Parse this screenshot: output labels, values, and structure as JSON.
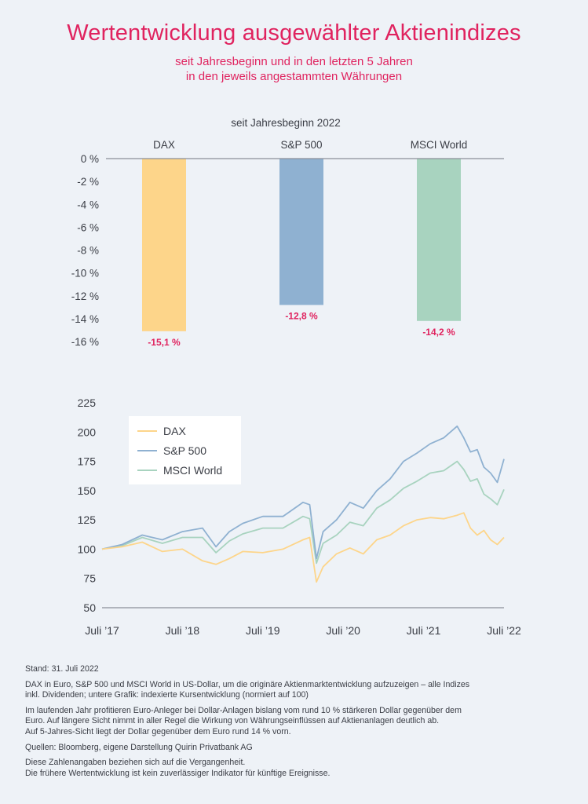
{
  "header": {
    "title": "Wertentwicklung ausgewählter Aktienindizes",
    "subtitle_line1": "seit Jahresbeginn und in den letzten 5 Jahren",
    "subtitle_line2": "in den jeweils angestammten Währungen"
  },
  "chart_data": [
    {
      "type": "bar",
      "subtitle": "seit Jahresbeginn 2022",
      "categories": [
        "DAX",
        "S&P 500",
        "MSCI World"
      ],
      "values": [
        -15.1,
        -12.8,
        -14.2
      ],
      "value_labels": [
        "-15,1 %",
        "-12,8 %",
        "-14,2 %"
      ],
      "colors": [
        "#fdd58a",
        "#8fb1d1",
        "#a8d3bf"
      ],
      "ylim": [
        -16,
        0
      ],
      "yticks": [
        0,
        -2,
        -4,
        -6,
        -8,
        -10,
        -12,
        -14,
        -16
      ],
      "ytick_labels": [
        "0 %",
        "-2 %",
        "-4 %",
        "-6 %",
        "-8 %",
        "-10 %",
        "-12 %",
        "-14 %",
        "-16 %"
      ],
      "label_color": "#e0235f"
    },
    {
      "type": "line",
      "x": [
        "2017-07",
        "2017-10",
        "2018-01",
        "2018-04",
        "2018-07",
        "2018-10",
        "2018-12",
        "2019-02",
        "2019-04",
        "2019-07",
        "2019-10",
        "2020-01",
        "2020-02",
        "2020-03",
        "2020-04",
        "2020-06",
        "2020-08",
        "2020-10",
        "2020-12",
        "2021-02",
        "2021-04",
        "2021-06",
        "2021-08",
        "2021-10",
        "2021-12",
        "2022-01",
        "2022-02",
        "2022-03",
        "2022-04",
        "2022-05",
        "2022-06",
        "2022-07"
      ],
      "series": [
        {
          "name": "DAX",
          "color": "#fdd58a",
          "values": [
            100,
            102,
            106,
            98,
            100,
            90,
            87,
            92,
            98,
            97,
            100,
            108,
            110,
            72,
            85,
            96,
            101,
            96,
            108,
            112,
            120,
            125,
            127,
            126,
            129,
            131,
            118,
            112,
            116,
            108,
            104,
            110
          ]
        },
        {
          "name": "S&P 500",
          "color": "#8fb1d1",
          "values": [
            100,
            104,
            112,
            108,
            115,
            118,
            102,
            115,
            122,
            128,
            128,
            140,
            138,
            92,
            115,
            125,
            140,
            135,
            150,
            160,
            175,
            182,
            190,
            195,
            205,
            195,
            183,
            185,
            170,
            165,
            157,
            177
          ]
        },
        {
          "name": "MSCI World",
          "color": "#a8d3bf",
          "values": [
            100,
            103,
            110,
            105,
            110,
            110,
            97,
            107,
            113,
            118,
            118,
            128,
            126,
            88,
            105,
            112,
            123,
            120,
            135,
            142,
            152,
            158,
            165,
            167,
            175,
            168,
            158,
            160,
            147,
            143,
            138,
            151
          ]
        }
      ],
      "xtick_labels": [
        "Juli ’17",
        "Juli ’18",
        "Juli ’19",
        "Juli ’20",
        "Juli ’21",
        "Juli ’22"
      ],
      "yticks": [
        50,
        75,
        100,
        125,
        150,
        175,
        200,
        225
      ],
      "ylim": [
        50,
        225
      ],
      "legend_position": "top-left",
      "grid": false
    }
  ],
  "notes": {
    "stand": "Stand: 31. Juli 2022",
    "p1_line1": "DAX in Euro, S&P 500 und MSCI World in US-Dollar, um die originäre Aktienmarktentwicklung aufzuzeigen – alle Indizes",
    "p1_line2": "inkl. Dividenden; untere Grafik: indexierte Kursentwicklung (normiert auf 100)",
    "p2_line1": "Im laufenden Jahr profitieren Euro-Anleger bei Dollar-Anlagen bislang vom rund 10 % stärkeren Dollar gegenüber dem",
    "p2_line2": "Euro. Auf längere Sicht nimmt in aller Regel die Wirkung von Währungseinflüssen auf Aktienanlagen deutlich ab.",
    "p2_line3": "Auf 5-Jahres-Sicht liegt der Dollar gegenüber dem Euro rund 14 % vorn.",
    "sources": "Quellen: Bloomberg, eigene Darstellung Quirin Privatbank AG",
    "disclaimer_line1": "Diese Zahlenangaben beziehen sich auf die Vergangenheit.",
    "disclaimer_line2": "Die frühere Wertentwicklung ist kein zuverlässiger Indikator für künftige Ereignisse."
  }
}
